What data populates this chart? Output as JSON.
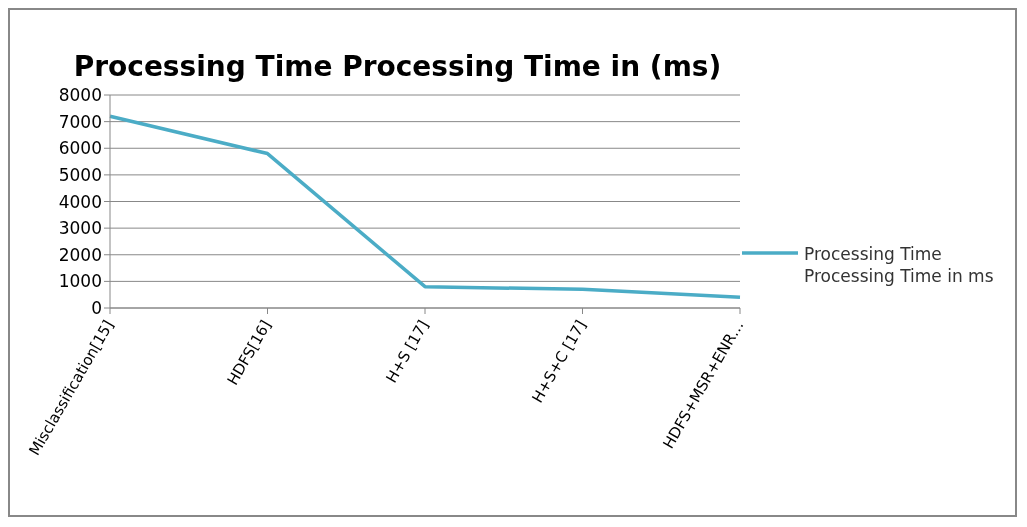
{
  "chart_data": {
    "type": "line",
    "title": "Processing Time  Processing Time in (ms)",
    "categories": [
      "Misclassification[15]",
      "HDFS[16]",
      "H+S [17]",
      "H+S+C [17]",
      "HDFS+MSR+ENR…"
    ],
    "series": [
      {
        "name": "Processing Time Processing Time in ms",
        "color": "#4bacc6",
        "values": [
          7200,
          5800,
          800,
          700,
          400
        ]
      }
    ],
    "ylim": [
      0,
      8000
    ],
    "yticks": [
      0,
      1000,
      2000,
      3000,
      4000,
      5000,
      6000,
      7000,
      8000
    ],
    "grid": "y",
    "legend": "right",
    "marker": "none",
    "line_style": "solid"
  }
}
